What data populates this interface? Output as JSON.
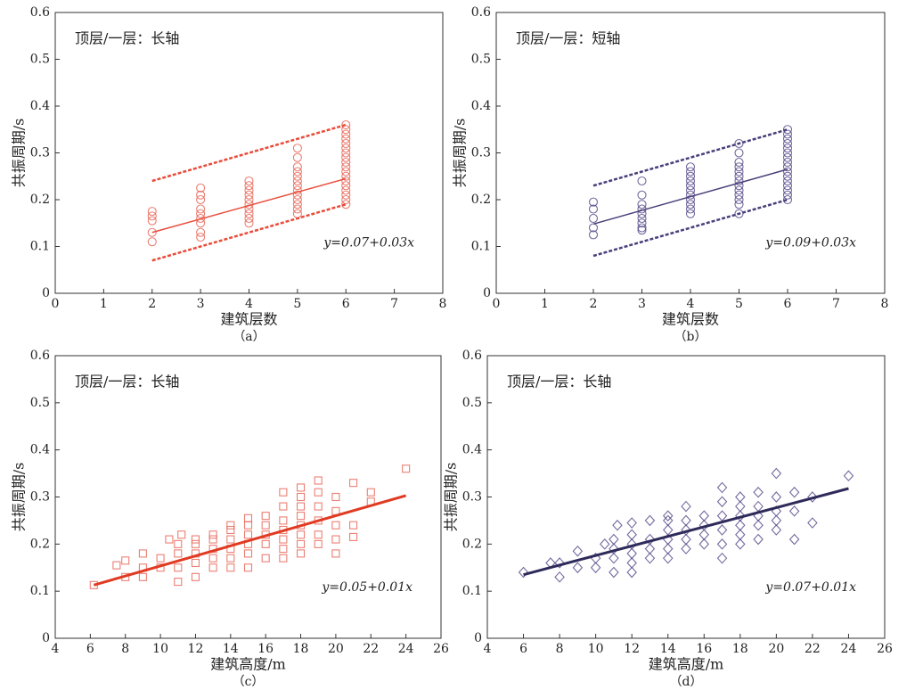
{
  "chart_data": [
    {
      "type": "scatter",
      "annotation": "顶层/一层：长轴",
      "equation": "y=0.07+0.03x",
      "xlabel": "建筑层数",
      "ylabel": "共振周期/s",
      "caption": "（a）",
      "xlim": [
        0,
        8
      ],
      "xticks": [
        0,
        1,
        2,
        3,
        4,
        5,
        6,
        7,
        8
      ],
      "ylim": [
        0,
        0.6
      ],
      "yticks": [
        0,
        0.1,
        0.2,
        0.3,
        0.4,
        0.5,
        0.6
      ],
      "marker": "circle",
      "color": "#e8685a",
      "points": {
        "x": [
          2,
          2,
          2,
          2,
          2,
          3,
          3,
          3,
          3,
          3,
          3,
          3,
          3,
          3,
          4,
          4,
          4,
          4,
          4,
          4,
          4,
          4,
          4,
          4,
          5,
          5,
          5,
          5,
          5,
          5,
          5,
          5,
          5,
          5,
          5,
          5,
          5,
          6,
          6,
          6,
          6,
          6,
          6,
          6,
          6,
          6,
          6,
          6,
          6,
          6,
          6,
          6,
          6,
          6,
          6
        ],
        "y": [
          0.11,
          0.13,
          0.155,
          0.165,
          0.175,
          0.12,
          0.13,
          0.15,
          0.16,
          0.17,
          0.18,
          0.2,
          0.21,
          0.225,
          0.15,
          0.16,
          0.17,
          0.18,
          0.19,
          0.2,
          0.21,
          0.22,
          0.23,
          0.24,
          0.17,
          0.18,
          0.19,
          0.2,
          0.21,
          0.22,
          0.23,
          0.24,
          0.25,
          0.26,
          0.27,
          0.29,
          0.31,
          0.19,
          0.2,
          0.21,
          0.22,
          0.23,
          0.24,
          0.25,
          0.26,
          0.27,
          0.28,
          0.29,
          0.3,
          0.31,
          0.32,
          0.33,
          0.34,
          0.35,
          0.36
        ]
      },
      "lines": [
        {
          "x": [
            2,
            6
          ],
          "y": [
            0.13,
            0.245
          ],
          "color": "#e84c3a",
          "dashed": false
        },
        {
          "x": [
            2,
            6
          ],
          "y": [
            0.24,
            0.36
          ],
          "color": "#e84c3a",
          "dashed": true
        },
        {
          "x": [
            2,
            6
          ],
          "y": [
            0.07,
            0.19
          ],
          "color": "#e84c3a",
          "dashed": true
        }
      ]
    },
    {
      "type": "scatter",
      "annotation": "顶层/一层：短轴",
      "equation": "y=0.09+0.03x",
      "xlabel": "建筑层数",
      "ylabel": "共振周期/s",
      "caption": "（b）",
      "xlim": [
        0,
        8
      ],
      "xticks": [
        0,
        1,
        2,
        3,
        4,
        5,
        6,
        7,
        8
      ],
      "ylim": [
        0,
        0.6
      ],
      "yticks": [
        0,
        0.1,
        0.2,
        0.3,
        0.4,
        0.5,
        0.6
      ],
      "marker": "circle",
      "color": "#5a4e8c",
      "points": {
        "x": [
          2,
          2,
          2,
          2,
          2,
          3,
          3,
          3,
          3,
          3,
          3,
          3,
          3,
          3,
          4,
          4,
          4,
          4,
          4,
          4,
          4,
          4,
          4,
          4,
          4,
          5,
          5,
          5,
          5,
          5,
          5,
          5,
          5,
          5,
          5,
          5,
          5,
          5,
          6,
          6,
          6,
          6,
          6,
          6,
          6,
          6,
          6,
          6,
          6,
          6,
          6,
          6,
          6,
          6
        ],
        "y": [
          0.125,
          0.14,
          0.16,
          0.18,
          0.195,
          0.135,
          0.14,
          0.15,
          0.16,
          0.17,
          0.18,
          0.19,
          0.21,
          0.24,
          0.17,
          0.18,
          0.19,
          0.2,
          0.21,
          0.22,
          0.23,
          0.24,
          0.25,
          0.26,
          0.27,
          0.17,
          0.19,
          0.2,
          0.21,
          0.22,
          0.23,
          0.24,
          0.25,
          0.26,
          0.27,
          0.28,
          0.3,
          0.32,
          0.2,
          0.21,
          0.22,
          0.23,
          0.24,
          0.25,
          0.26,
          0.27,
          0.28,
          0.29,
          0.3,
          0.31,
          0.32,
          0.33,
          0.34,
          0.35
        ]
      },
      "lines": [
        {
          "x": [
            2,
            6
          ],
          "y": [
            0.148,
            0.265
          ],
          "color": "#4a3f7a",
          "dashed": false
        },
        {
          "x": [
            2,
            6
          ],
          "y": [
            0.23,
            0.35
          ],
          "color": "#4a3f7a",
          "dashed": true
        },
        {
          "x": [
            2,
            6
          ],
          "y": [
            0.08,
            0.2
          ],
          "color": "#4a3f7a",
          "dashed": true
        }
      ]
    },
    {
      "type": "scatter",
      "annotation": "顶层/一层：长轴",
      "equation": "y=0.05+0.01x",
      "xlabel": "建筑高度/m",
      "ylabel": "共振周期/s",
      "caption": "（c）",
      "xlim": [
        4,
        26
      ],
      "xticks": [
        4,
        6,
        8,
        10,
        12,
        14,
        16,
        18,
        20,
        22,
        24,
        26
      ],
      "ylim": [
        0,
        0.6
      ],
      "yticks": [
        0,
        0.1,
        0.2,
        0.3,
        0.4,
        0.5,
        0.6
      ],
      "marker": "square",
      "color": "#e8685a",
      "points": {
        "x": [
          6.2,
          7.5,
          8,
          8,
          9,
          9,
          9,
          10,
          10,
          10.5,
          11,
          11,
          11,
          11,
          11.2,
          12,
          12,
          12,
          12,
          12,
          13,
          13,
          13,
          13,
          13,
          14,
          14,
          14,
          14,
          14,
          14,
          15,
          15,
          15,
          15,
          15,
          15,
          16,
          16,
          16,
          16,
          16,
          17,
          17,
          17,
          17,
          17,
          17,
          17,
          18,
          18,
          18,
          18,
          18,
          18,
          18,
          18,
          19,
          19,
          19,
          19,
          19,
          19,
          20,
          20,
          20,
          20,
          20,
          21,
          21,
          21,
          22,
          22,
          24
        ],
        "y": [
          0.113,
          0.155,
          0.13,
          0.165,
          0.13,
          0.15,
          0.18,
          0.15,
          0.17,
          0.21,
          0.12,
          0.15,
          0.18,
          0.2,
          0.22,
          0.13,
          0.16,
          0.18,
          0.2,
          0.21,
          0.15,
          0.17,
          0.19,
          0.21,
          0.22,
          0.15,
          0.17,
          0.19,
          0.21,
          0.23,
          0.24,
          0.15,
          0.18,
          0.2,
          0.22,
          0.24,
          0.255,
          0.17,
          0.2,
          0.22,
          0.24,
          0.26,
          0.17,
          0.19,
          0.21,
          0.23,
          0.25,
          0.28,
          0.31,
          0.18,
          0.2,
          0.22,
          0.24,
          0.26,
          0.28,
          0.3,
          0.32,
          0.2,
          0.22,
          0.25,
          0.28,
          0.31,
          0.335,
          0.18,
          0.21,
          0.24,
          0.27,
          0.3,
          0.215,
          0.24,
          0.33,
          0.29,
          0.31,
          0.36
        ]
      },
      "lines": [
        {
          "x": [
            6.2,
            24
          ],
          "y": [
            0.113,
            0.303
          ],
          "color": "#e03a22",
          "dashed": false
        }
      ]
    },
    {
      "type": "scatter",
      "annotation": "顶层/一层：长轴",
      "equation": "y=0.07+0.01x",
      "xlabel": "建筑高度/m",
      "ylabel": "共振周期/s",
      "caption": "（d）",
      "xlim": [
        4,
        26
      ],
      "xticks": [
        4,
        6,
        8,
        10,
        12,
        14,
        16,
        18,
        20,
        22,
        24,
        26
      ],
      "ylim": [
        0,
        0.6
      ],
      "yticks": [
        0,
        0.1,
        0.2,
        0.3,
        0.4,
        0.5,
        0.6
      ],
      "marker": "diamond",
      "color": "#5a4e8c",
      "points": {
        "x": [
          6,
          7.5,
          8,
          8,
          9,
          9,
          10,
          10,
          10.5,
          11,
          11,
          11,
          11,
          11.2,
          12,
          12,
          12,
          12,
          12,
          12,
          13,
          13,
          13,
          13,
          14,
          14,
          14,
          14,
          14,
          14,
          15,
          15,
          15,
          15,
          15,
          16,
          16,
          16,
          16,
          17,
          17,
          17,
          17,
          17,
          17,
          18,
          18,
          18,
          18,
          18,
          18,
          19,
          19,
          19,
          19,
          19,
          20,
          20,
          20,
          20,
          20,
          21,
          21,
          21,
          22,
          22,
          24
        ],
        "y": [
          0.14,
          0.16,
          0.13,
          0.16,
          0.15,
          0.185,
          0.15,
          0.17,
          0.2,
          0.14,
          0.17,
          0.19,
          0.21,
          0.24,
          0.14,
          0.16,
          0.18,
          0.2,
          0.22,
          0.245,
          0.17,
          0.19,
          0.21,
          0.25,
          0.17,
          0.19,
          0.21,
          0.23,
          0.25,
          0.26,
          0.19,
          0.21,
          0.23,
          0.25,
          0.28,
          0.2,
          0.22,
          0.24,
          0.26,
          0.17,
          0.2,
          0.23,
          0.26,
          0.29,
          0.32,
          0.2,
          0.22,
          0.24,
          0.26,
          0.28,
          0.3,
          0.21,
          0.24,
          0.26,
          0.28,
          0.31,
          0.23,
          0.25,
          0.27,
          0.3,
          0.35,
          0.21,
          0.27,
          0.31,
          0.245,
          0.3,
          0.345
        ]
      },
      "lines": [
        {
          "x": [
            6,
            24
          ],
          "y": [
            0.135,
            0.318
          ],
          "color": "#2e2b5a",
          "dashed": false
        }
      ]
    }
  ]
}
